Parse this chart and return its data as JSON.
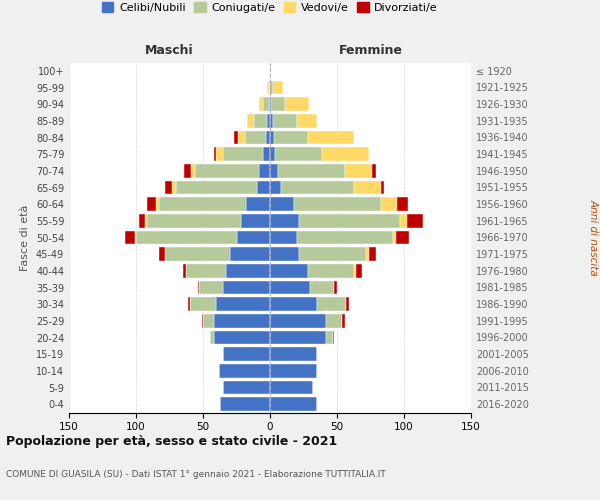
{
  "age_groups": [
    "0-4",
    "5-9",
    "10-14",
    "15-19",
    "20-24",
    "25-29",
    "30-34",
    "35-39",
    "40-44",
    "45-49",
    "50-54",
    "55-59",
    "60-64",
    "65-69",
    "70-74",
    "75-79",
    "80-84",
    "85-89",
    "90-94",
    "95-99",
    "100+"
  ],
  "birth_years": [
    "2016-2020",
    "2011-2015",
    "2006-2010",
    "2001-2005",
    "1996-2000",
    "1991-1995",
    "1986-1990",
    "1981-1985",
    "1976-1980",
    "1971-1975",
    "1966-1970",
    "1961-1965",
    "1956-1960",
    "1951-1955",
    "1946-1950",
    "1941-1945",
    "1936-1940",
    "1931-1935",
    "1926-1930",
    "1921-1925",
    "≤ 1920"
  ],
  "male": {
    "celibi": [
      37,
      35,
      38,
      35,
      42,
      42,
      40,
      35,
      33,
      30,
      25,
      22,
      18,
      10,
      8,
      5,
      3,
      2,
      1,
      0,
      0
    ],
    "coniugati": [
      0,
      0,
      0,
      0,
      3,
      8,
      20,
      18,
      30,
      48,
      75,
      70,
      65,
      60,
      48,
      30,
      16,
      10,
      4,
      1,
      0
    ],
    "vedovi": [
      0,
      0,
      0,
      0,
      0,
      0,
      0,
      0,
      0,
      0,
      1,
      1,
      2,
      3,
      3,
      5,
      5,
      5,
      3,
      1,
      0
    ],
    "divorziati": [
      0,
      0,
      0,
      0,
      0,
      1,
      1,
      1,
      2,
      5,
      7,
      5,
      7,
      5,
      5,
      2,
      3,
      0,
      0,
      0,
      0
    ]
  },
  "female": {
    "nubili": [
      35,
      32,
      35,
      35,
      42,
      42,
      35,
      30,
      28,
      22,
      20,
      22,
      18,
      8,
      6,
      4,
      3,
      2,
      1,
      0,
      0
    ],
    "coniugate": [
      0,
      0,
      0,
      0,
      5,
      12,
      22,
      18,
      35,
      50,
      72,
      75,
      65,
      55,
      50,
      35,
      25,
      18,
      10,
      2,
      0
    ],
    "vedove": [
      0,
      0,
      0,
      0,
      0,
      0,
      0,
      0,
      1,
      2,
      2,
      5,
      12,
      20,
      20,
      35,
      35,
      15,
      18,
      8,
      1
    ],
    "divorziate": [
      0,
      0,
      0,
      0,
      1,
      2,
      2,
      2,
      5,
      5,
      10,
      12,
      8,
      2,
      3,
      0,
      0,
      0,
      0,
      0,
      0
    ]
  },
  "colors": {
    "celibi": "#4472c4",
    "coniugati": "#b5c99a",
    "vedovi": "#ffd966",
    "divorziati": "#c00000"
  },
  "legend_labels": [
    "Celibi/Nubili",
    "Coniugati/e",
    "Vedovi/e",
    "Divorziati/e"
  ],
  "title": "Popolazione per età, sesso e stato civile - 2021",
  "subtitle": "COMUNE DI GUASILA (SU) - Dati ISTAT 1° gennaio 2021 - Elaborazione TUTTITALIA.IT",
  "xlabel_left": "Maschi",
  "xlabel_right": "Femmine",
  "ylabel_left": "Fasce di età",
  "ylabel_right": "Anni di nascita",
  "xlim": 150,
  "bg_color": "#f0f0f0",
  "plot_bg": "#ffffff"
}
